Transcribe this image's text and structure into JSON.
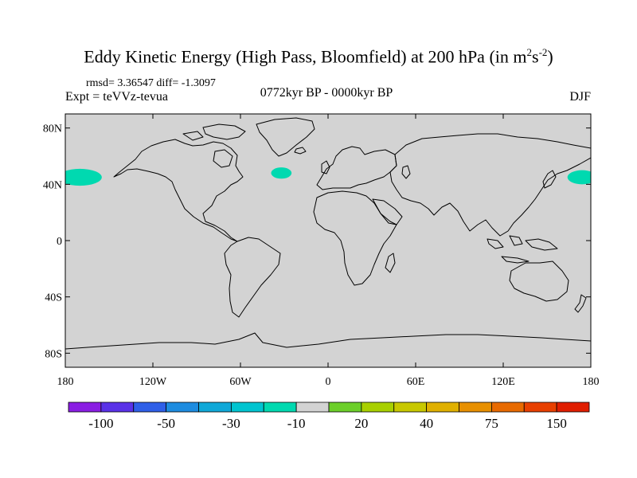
{
  "title": {
    "main": "Eddy Kinetic Energy (High Pass, Bloomfield) at 200 hPa (in m",
    "sup1": "2",
    "mid": "s",
    "sup2": "-2",
    "end": ")"
  },
  "stats": "rmsd= 3.36547 diff= -1.3097",
  "experiment": "Expt = teVVz-tevua",
  "period": "0772kyr BP - 0000kyr BP",
  "season": "DJF",
  "map": {
    "projection": "cylindrical-equidistant",
    "lon_range": [
      -180,
      180
    ],
    "lat_range": [
      -90,
      90
    ],
    "background_color": "#d3d3d3",
    "coastline_color": "#000000",
    "lat_ticks": [
      {
        "lat": 80,
        "label": "80N"
      },
      {
        "lat": 40,
        "label": "40N"
      },
      {
        "lat": 0,
        "label": "0"
      },
      {
        "lat": -40,
        "label": "40S"
      },
      {
        "lat": -80,
        "label": "80S"
      }
    ],
    "lon_ticks": [
      {
        "lon": -180,
        "label": "180"
      },
      {
        "lon": -120,
        "label": "120W"
      },
      {
        "lon": -60,
        "label": "60W"
      },
      {
        "lon": 0,
        "label": "0"
      },
      {
        "lon": 60,
        "label": "60E"
      },
      {
        "lon": 120,
        "label": "120E"
      },
      {
        "lon": 180,
        "label": "180"
      }
    ],
    "anomaly_regions": [
      {
        "name": "north-pacific-west",
        "color": "#00d9b0",
        "lon_center": -170,
        "lat_center": 45,
        "lon_halfwidth": 15,
        "lat_halfwidth": 6
      },
      {
        "name": "north-atlantic",
        "color": "#00d9b0",
        "lon_center": -32,
        "lat_center": 48,
        "lon_halfwidth": 7,
        "lat_halfwidth": 4
      },
      {
        "name": "north-pacific-east",
        "color": "#00d9b0",
        "lon_center": 174,
        "lat_center": 45,
        "lon_halfwidth": 10,
        "lat_halfwidth": 5
      }
    ]
  },
  "colorbar": {
    "colors": [
      "#8a1ee3",
      "#5a32e8",
      "#2f5fe8",
      "#1e8ce0",
      "#10a8d8",
      "#00c4d0",
      "#00d9b0",
      "#d3d3d3",
      "#6ccf2a",
      "#a8d000",
      "#c8c800",
      "#e0b000",
      "#e89000",
      "#e86a00",
      "#e84000",
      "#e01e00"
    ],
    "labels": [
      {
        "boundary": 1,
        "text": "-100"
      },
      {
        "boundary": 3,
        "text": "-50"
      },
      {
        "boundary": 5,
        "text": "-30"
      },
      {
        "boundary": 7,
        "text": "-10"
      },
      {
        "boundary": 9,
        "text": "20"
      },
      {
        "boundary": 11,
        "text": "40"
      },
      {
        "boundary": 13,
        "text": "75"
      },
      {
        "boundary": 15,
        "text": "150"
      }
    ]
  }
}
